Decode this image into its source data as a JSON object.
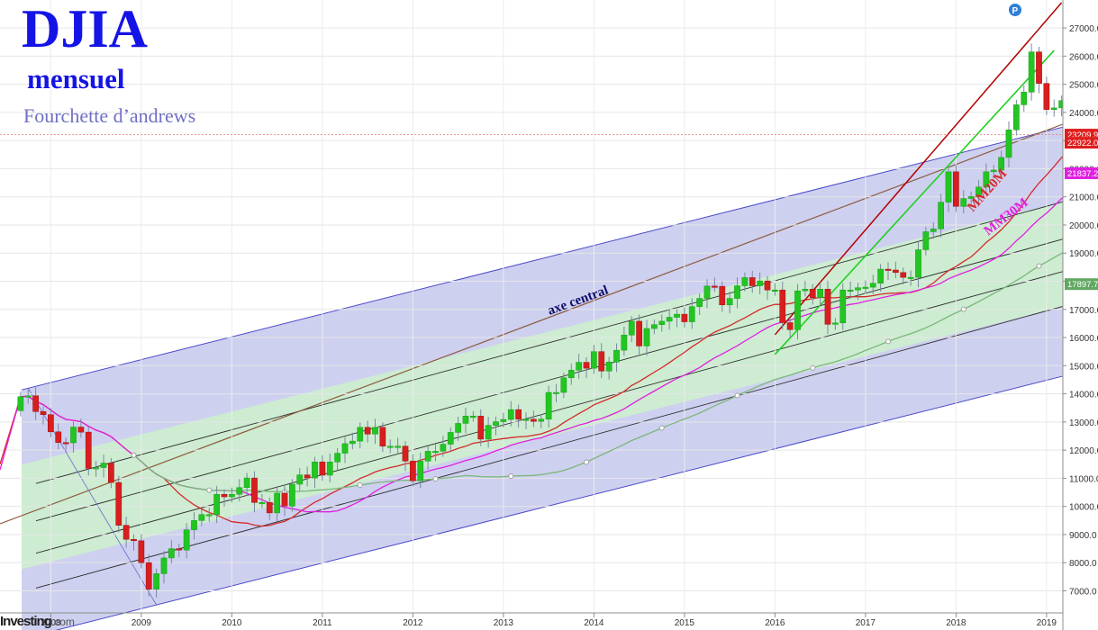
{
  "header": {
    "title": "DJIA",
    "subtitle": "mensuel",
    "caption": "Fourchette d’andrews",
    "watermark": "Investing",
    "watermark_suffix": ".com"
  },
  "colors": {
    "background": "#ffffff",
    "outer_channel": "#c9cbee",
    "inner_channel": "#cdeecd",
    "channel_border": "#4a4ac8",
    "bull_candle": "#22c522",
    "bear_candle": "#d81e1e",
    "ma20": "#d42a2a",
    "ma30": "#e020e0",
    "ma_long": "#79b879",
    "trend_red": "#b30000",
    "trend_green": "#20d020",
    "price_line": "#e07a6a",
    "annotation_navy": "#10106a"
  },
  "chart_data": {
    "type": "candlestick",
    "title": "DJIA",
    "subtitle": "mensuel",
    "x_ticks": [
      "2008",
      "2009",
      "2010",
      "2011",
      "2012",
      "2013",
      "2014",
      "2015",
      "2016",
      "2017",
      "2018",
      "2019"
    ],
    "x_range": [
      "2007-09",
      "2019-02"
    ],
    "ylim": [
      6500,
      27700
    ],
    "y_ticks": [
      "7000.0",
      "8000.0",
      "9000.0",
      "10000.0",
      "11000.0",
      "12000.0",
      "13000.0",
      "14000.0",
      "15000.0",
      "16000.0",
      "17000.0",
      "18000.0",
      "19000.0",
      "20000.0",
      "21000.0",
      "22000.0",
      "23000.0",
      "24000.0",
      "25000.0",
      "26000.0",
      "27000.0"
    ],
    "price_tags": [
      {
        "label": "23209.9",
        "value": 23210,
        "color": "#e01e1e"
      },
      {
        "label": "22922.0",
        "value": 22922,
        "color": "#e01e1e"
      },
      {
        "label": "21837.2",
        "value": 21837,
        "color": "#e020e0"
      },
      {
        "label": "17897.7",
        "value": 17898,
        "color": "#62a862"
      }
    ],
    "candles_monthly_close_from_2007_09": [
      13900,
      13930,
      13370,
      13260,
      12650,
      12270,
      12260,
      12820,
      12640,
      11350,
      11380,
      11540,
      10850,
      9330,
      8830,
      8780,
      8000,
      7060,
      7610,
      8170,
      8500,
      8450,
      9170,
      9500,
      9710,
      9710,
      10430,
      10340,
      10430,
      10670,
      11010,
      10140,
      10140,
      9770,
      10470,
      10010,
      10790,
      11120,
      11010,
      11580,
      11110,
      11580,
      11890,
      12230,
      12320,
      12810,
      12570,
      12810,
      12140,
      12140,
      12140,
      11610,
      10910,
      11610,
      11960,
      11960,
      12210,
      12630,
      12950,
      13210,
      13210,
      12390,
      12880,
      13010,
      13090,
      13440,
      13100,
      13100,
      13020,
      13100,
      14050,
      14050,
      14570,
      14840,
      15120,
      14910,
      15500,
      14810,
      15130,
      15550,
      16090,
      16580,
      15700,
      16320,
      16460,
      16580,
      16720,
      16830,
      16560,
      17100,
      17390,
      17830,
      17820,
      17160,
      17390,
      17840,
      18130,
      17840,
      18010,
      17690,
      17690,
      16530,
      16280,
      17660,
      17720,
      17420,
      17720,
      16470,
      16520,
      17690,
      17690,
      17770,
      17790,
      17930,
      18430,
      18400,
      18310,
      18140,
      18140,
      19120,
      19760,
      19860,
      20810,
      21890,
      20660,
      20940,
      21010,
      21350,
      21890,
      21950,
      22400,
      23380,
      24270,
      24720,
      26150,
      25030,
      24100,
      24160,
      24420,
      24270,
      25420,
      25960,
      26460,
      25120,
      25540,
      23330,
      23210
    ],
    "series": [
      {
        "name": "MM20M",
        "curve": "simple moving average 20 months"
      },
      {
        "name": "MM30M",
        "curve": "simple moving average 30 months"
      },
      {
        "name": "",
        "curve": "long moving average"
      }
    ],
    "andrews_fork": {
      "pivot_start": {
        "date": "2007-10",
        "value": 14200
      },
      "pivot_low": {
        "date": "2009-03",
        "value": 6500
      },
      "median_line_end": {
        "date": "2019-02",
        "value": 23400
      }
    },
    "annotations": [
      {
        "text": "axe central",
        "color": "#10106a"
      },
      {
        "text": "MM20M",
        "color": "#d42a2a"
      },
      {
        "text": "MM30M",
        "color": "#e020e0"
      },
      {
        "text": "P",
        "color": "#2f7fd8"
      }
    ],
    "legend": "none",
    "grid": true
  }
}
